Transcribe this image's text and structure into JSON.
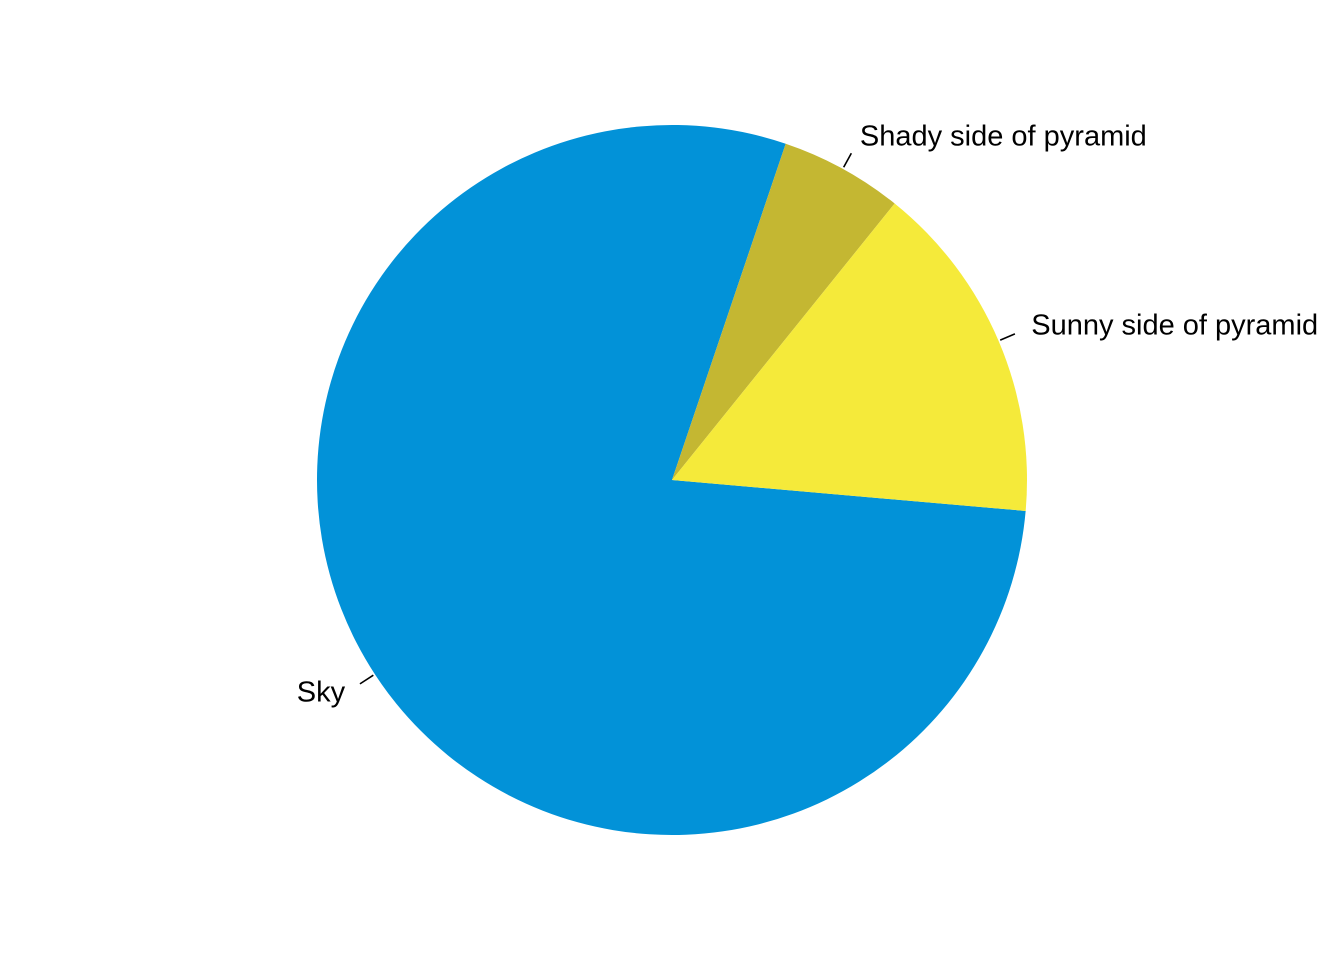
{
  "chart_data": {
    "type": "pie",
    "title": "",
    "slices": [
      {
        "label": "Sky",
        "value": 78.8,
        "color": "#0292D8"
      },
      {
        "label": "Shady side of pyramid",
        "value": 5.6,
        "color": "#C4B732"
      },
      {
        "label": "Sunny side of pyramid",
        "value": 15.6,
        "color": "#F5EA3A"
      }
    ],
    "start_angle_deg": -5,
    "direction": "clockwise",
    "legend": "none",
    "labels": "outside-with-leader-lines"
  }
}
